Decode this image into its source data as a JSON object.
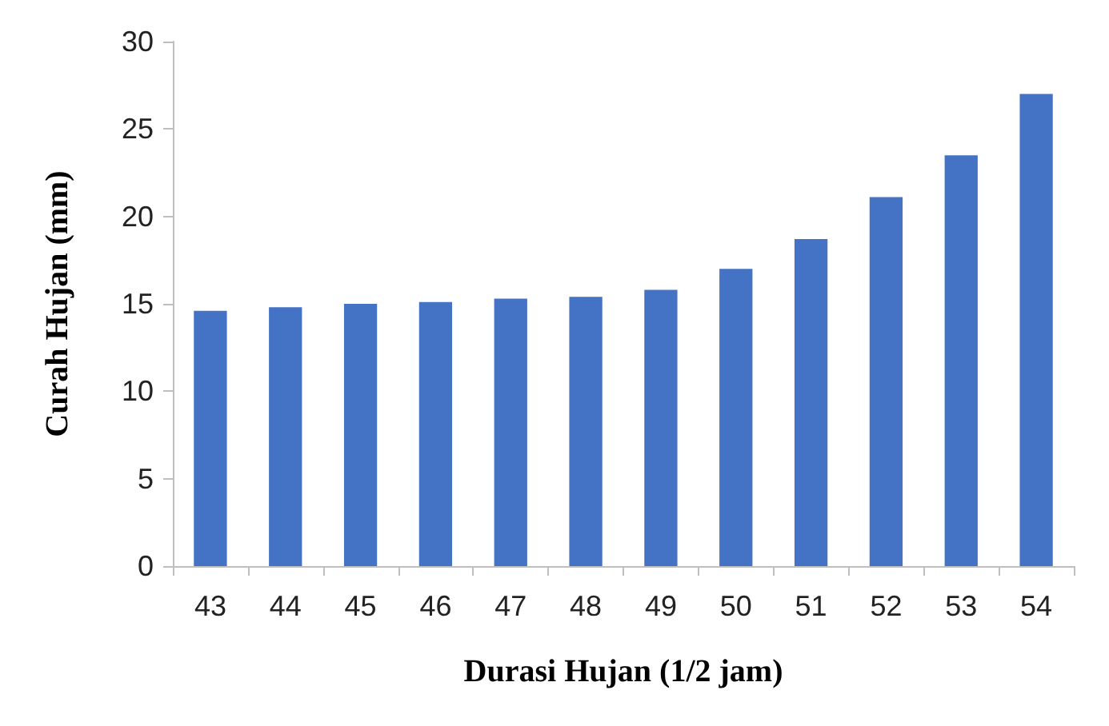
{
  "chart_data": {
    "type": "bar",
    "xlabel": "Durasi Hujan (1/2 jam)",
    "ylabel": "Curah Hujan (mm)",
    "categories": [
      "43",
      "44",
      "45",
      "46",
      "47",
      "48",
      "49",
      "50",
      "51",
      "52",
      "53",
      "54"
    ],
    "values": [
      14.6,
      14.8,
      15.0,
      15.1,
      15.3,
      15.4,
      15.8,
      17.0,
      18.7,
      21.1,
      23.5,
      27.0
    ],
    "color": "#4472c4",
    "ylim": [
      0,
      30
    ],
    "yticks": [
      0,
      5,
      10,
      15,
      20,
      25,
      30
    ],
    "grid": false
  }
}
